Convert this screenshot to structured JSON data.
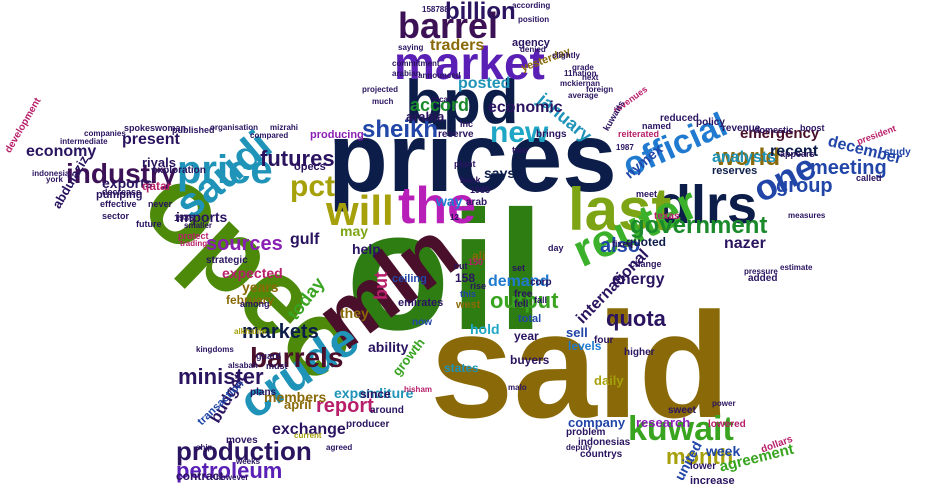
{
  "words": [
    {
      "text": "oil",
      "color": "#2e7d12"
    },
    {
      "text": "said",
      "color": "#8a6a08"
    },
    {
      "text": "prices",
      "color": "#0d1d4a"
    },
    {
      "text": "opec",
      "color": "#4d8a0a"
    },
    {
      "text": "mln",
      "color": "#4a0f2a"
    },
    {
      "text": "bpd",
      "color": "#0d1d4a"
    },
    {
      "text": "market",
      "color": "#5a1fb4"
    },
    {
      "text": "the",
      "color": "#b81fb8"
    },
    {
      "text": "dlrs",
      "color": "#0d1d4a"
    },
    {
      "text": "last",
      "color": "#7da414"
    },
    {
      "text": "reuter",
      "color": "#3bb02a"
    },
    {
      "text": "crude",
      "color": "#1f93b8"
    },
    {
      "text": "barrel",
      "color": "#3d1155"
    },
    {
      "text": "official",
      "color": "#1f7ad0"
    },
    {
      "text": "one",
      "color": "#2146a8"
    },
    {
      "text": "will",
      "color": "#a6a00a"
    },
    {
      "text": "saudi",
      "color": "#1f93b8"
    },
    {
      "text": "price",
      "color": "#1f93b8"
    },
    {
      "text": "new",
      "color": "#1fa6c4"
    },
    {
      "text": "kuwait",
      "color": "#38a41f"
    },
    {
      "text": "production",
      "color": "#2a1460"
    },
    {
      "text": "barrels",
      "color": "#4a0f2a"
    },
    {
      "text": "government",
      "color": "#1a8a2a"
    },
    {
      "text": "pct",
      "color": "#a6a00a"
    },
    {
      "text": "industry",
      "color": "#3d1155"
    },
    {
      "text": "sheikh",
      "color": "#2146a8"
    },
    {
      "text": "billion",
      "color": "#2a1460"
    },
    {
      "text": "futures",
      "color": "#2a1460"
    },
    {
      "text": "minister",
      "color": "#2a1460"
    },
    {
      "text": "petroleum",
      "color": "#5a1fb4"
    },
    {
      "text": "world",
      "color": "#8a6a08"
    },
    {
      "text": "meeting",
      "color": "#2146a8"
    },
    {
      "text": "month",
      "color": "#a6a00a"
    },
    {
      "text": "quota",
      "color": "#2a1460"
    },
    {
      "text": "output",
      "color": "#38a41f"
    },
    {
      "text": "sources",
      "color": "#8a1fb4"
    },
    {
      "text": "markets",
      "color": "#0d1d4a"
    },
    {
      "text": "report",
      "color": "#b81f6a"
    },
    {
      "text": "also",
      "color": "#2146a8"
    },
    {
      "text": "group",
      "color": "#2146a8"
    },
    {
      "text": "analysts",
      "color": "#1f93b8"
    },
    {
      "text": "accord",
      "color": "#1a8a2a"
    },
    {
      "text": "january",
      "color": "#1f93b8"
    },
    {
      "text": "economic",
      "color": "#2a1460"
    },
    {
      "text": "present",
      "color": "#2a1460"
    },
    {
      "text": "economy",
      "color": "#2a1460"
    },
    {
      "text": "emergency",
      "color": "#4a0f2a"
    },
    {
      "text": "december",
      "color": "#2146a8"
    },
    {
      "text": "recent",
      "color": "#0d1d4a"
    },
    {
      "text": "traders",
      "color": "#8a6a08"
    },
    {
      "text": "posted",
      "color": "#1f93b8"
    },
    {
      "text": "demand",
      "color": "#1f7ad0"
    },
    {
      "text": "today",
      "color": "#38a41f"
    },
    {
      "text": "members",
      "color": "#8a6a08"
    },
    {
      "text": "expenditure",
      "color": "#1f93b8"
    },
    {
      "text": "exchange",
      "color": "#2a1460"
    },
    {
      "text": "budget",
      "color": "#2a1460"
    },
    {
      "text": "expected",
      "color": "#b81f6a"
    },
    {
      "text": "international",
      "color": "#2a1460"
    },
    {
      "text": "energy",
      "color": "#2a1460"
    },
    {
      "text": "nazer",
      "color": "#2a1460"
    },
    {
      "text": "agreement",
      "color": "#38a41f"
    },
    {
      "text": "week",
      "color": "#2146a8"
    },
    {
      "text": "united",
      "color": "#2146a8"
    },
    {
      "text": "company",
      "color": "#2146a8"
    },
    {
      "text": "research",
      "color": "#8a1fb4"
    },
    {
      "text": "gulf",
      "color": "#2a1460"
    },
    {
      "text": "years",
      "color": "#8a6a08"
    },
    {
      "text": "exports",
      "color": "#2a1460"
    },
    {
      "text": "imports",
      "color": "#2a1460"
    },
    {
      "text": "help",
      "color": "#2a1460"
    },
    {
      "text": "may",
      "color": "#7da414"
    },
    {
      "text": "but",
      "color": "#b81f6a"
    },
    {
      "text": "they",
      "color": "#8a6a08"
    },
    {
      "text": "ability",
      "color": "#2a1460"
    },
    {
      "text": "growth",
      "color": "#38a41f"
    },
    {
      "text": "nymex",
      "color": "#2146a8"
    },
    {
      "text": "says",
      "color": "#0d1d4a"
    },
    {
      "text": "way",
      "color": "#1f7ad0"
    },
    {
      "text": "arabia",
      "color": "#2a1460"
    },
    {
      "text": "riyals",
      "color": "#2a1460"
    },
    {
      "text": "abdulaziz",
      "color": "#2a1460"
    },
    {
      "text": "sell",
      "color": "#2146a8"
    },
    {
      "text": "hold",
      "color": "#1fa6c4"
    },
    {
      "text": "year",
      "color": "#2a1460"
    },
    {
      "text": "158",
      "color": "#2a1460"
    },
    {
      "text": "ali",
      "color": "#8a6a08"
    },
    {
      "text": "quoted",
      "color": "#0d1d4a"
    },
    {
      "text": "daily",
      "color": "#a6a00a"
    },
    {
      "text": "april",
      "color": "#8a6a08"
    },
    {
      "text": "contract",
      "color": "#2a1460"
    },
    {
      "text": "february",
      "color": "#8a6a08"
    },
    {
      "text": "opecs",
      "color": "#2a1460"
    },
    {
      "text": "reserves",
      "color": "#0d1d4a"
    },
    {
      "text": "increase",
      "color": "#2a1460"
    },
    {
      "text": "states",
      "color": "#1f93b8"
    },
    {
      "text": "buyers",
      "color": "#2a1460"
    },
    {
      "text": "since",
      "color": "#2a1460"
    },
    {
      "text": "levels",
      "color": "#1f7ad0"
    },
    {
      "text": "qatar",
      "color": "#b81f6a"
    },
    {
      "text": "exploration",
      "color": "#2a1460"
    },
    {
      "text": "pumping",
      "color": "#2a1460"
    },
    {
      "text": "strategic",
      "color": "#2a1460"
    },
    {
      "text": "transaction",
      "color": "#2146a8"
    },
    {
      "text": "producing",
      "color": "#8a1fb4"
    },
    {
      "text": "agency",
      "color": "#2a1460"
    },
    {
      "text": "yesterday",
      "color": "#8a6a08"
    },
    {
      "text": "emirates",
      "color": "#2a1460"
    },
    {
      "text": "total",
      "color": "#2146a8"
    },
    {
      "text": "west",
      "color": "#8a6a08"
    },
    {
      "text": "ceiling",
      "color": "#2146a8"
    },
    {
      "text": "fell",
      "color": "#2a1460"
    },
    {
      "text": "free",
      "color": "#2a1460"
    },
    {
      "text": "corp",
      "color": "#2a1460"
    },
    {
      "text": "now",
      "color": "#2146a8"
    },
    {
      "text": "arab",
      "color": "#2a1460"
    },
    {
      "text": "study",
      "color": "#2146a8"
    },
    {
      "text": "added",
      "color": "#2a1460"
    },
    {
      "text": "higher",
      "color": "#2a1460"
    },
    {
      "text": "four",
      "color": "#2a1460"
    },
    {
      "text": "problem",
      "color": "#2a1460"
    },
    {
      "text": "texas",
      "color": "#b81f6a"
    },
    {
      "text": "sweet",
      "color": "#2a1460"
    },
    {
      "text": "lower",
      "color": "#2a1460"
    },
    {
      "text": "plans",
      "color": "#2a1460"
    },
    {
      "text": "moves",
      "color": "#2a1460"
    },
    {
      "text": "producer",
      "color": "#2a1460"
    },
    {
      "text": "around",
      "color": "#2a1460"
    },
    {
      "text": "countrys",
      "color": "#2a1460"
    },
    {
      "text": "indonesias",
      "color": "#2a1460"
    },
    {
      "text": "dollars",
      "color": "#b81f6a"
    },
    {
      "text": "lowered",
      "color": "#b81f6a"
    },
    {
      "text": "reserve",
      "color": "#2a1460"
    },
    {
      "text": "brings",
      "color": "#2a1460"
    },
    {
      "text": "policy",
      "color": "#2a1460"
    },
    {
      "text": "revenue",
      "color": "#2a1460"
    },
    {
      "text": "reduced",
      "color": "#2a1460"
    },
    {
      "text": "reiterated",
      "color": "#b81f6a"
    },
    {
      "text": "revenues",
      "color": "#b81f6a"
    },
    {
      "text": "kuwaits",
      "color": "#2a1460"
    },
    {
      "text": "domestic",
      "color": "#2a1460"
    },
    {
      "text": "appears",
      "color": "#2a1460"
    },
    {
      "text": "boost",
      "color": "#2a1460"
    },
    {
      "text": "called",
      "color": "#2a1460"
    },
    {
      "text": "named",
      "color": "#2a1460"
    },
    {
      "text": "effective",
      "color": "#2a1460"
    },
    {
      "text": "never",
      "color": "#2a1460"
    },
    {
      "text": "sector",
      "color": "#2a1460"
    },
    {
      "text": "future",
      "color": "#2a1460"
    },
    {
      "text": "protect",
      "color": "#b81f6a"
    },
    {
      "text": "among",
      "color": "#2a1460"
    },
    {
      "text": "guard",
      "color": "#2a1460"
    },
    {
      "text": "must",
      "color": "#2a1460"
    },
    {
      "text": "fixed",
      "color": "#2a1460"
    },
    {
      "text": "change",
      "color": "#2a1460"
    },
    {
      "text": "plant",
      "color": "#2a1460"
    },
    {
      "text": "cut",
      "color": "#2a1460"
    },
    {
      "text": "rise",
      "color": "#2a1460"
    },
    {
      "text": "this",
      "color": "#2146a8"
    },
    {
      "text": "set",
      "color": "#2a1460"
    },
    {
      "text": "fall",
      "color": "#2a1460"
    },
    {
      "text": "day",
      "color": "#2a1460"
    },
    {
      "text": "two",
      "color": "#2a1460"
    },
    {
      "text": "inc",
      "color": "#2a1460"
    },
    {
      "text": "back",
      "color": "#2a1460"
    },
    {
      "text": "meet",
      "color": "#2a1460"
    },
    {
      "text": "1985",
      "color": "#2a1460"
    },
    {
      "text": "1986",
      "color": "#2a1460"
    },
    {
      "text": "150",
      "color": "#b81f6a"
    },
    {
      "text": "spokeswoman",
      "color": "#2a1460"
    },
    {
      "text": "development",
      "color": "#b81f6a"
    },
    {
      "text": "decrease",
      "color": "#2a1460"
    },
    {
      "text": "published",
      "color": "#2a1460"
    },
    {
      "text": "commitment",
      "color": "#2a1460"
    },
    {
      "text": "compared",
      "color": "#2a1460"
    },
    {
      "text": "mizrahi",
      "color": "#2a1460"
    },
    {
      "text": "saying",
      "color": "#2a1460"
    },
    {
      "text": "arabian",
      "color": "#2a1460"
    },
    {
      "text": "denied",
      "color": "#2a1460"
    },
    {
      "text": "position",
      "color": "#2a1460"
    },
    {
      "text": "foreign",
      "color": "#2a1460"
    },
    {
      "text": "according",
      "color": "#2a1460"
    },
    {
      "text": "mckiernan",
      "color": "#2a1460"
    },
    {
      "text": "grade",
      "color": "#2a1460"
    },
    {
      "text": "next",
      "color": "#2a1460"
    },
    {
      "text": "president",
      "color": "#b81f6a"
    },
    {
      "text": "estimate",
      "color": "#2a1460"
    },
    {
      "text": "pressure",
      "color": "#2a1460"
    },
    {
      "text": "measures",
      "color": "#2a1460"
    },
    {
      "text": "power",
      "color": "#2a1460"
    },
    {
      "text": "hisham",
      "color": "#b81f6a"
    },
    {
      "text": "alsabah",
      "color": "#2a1460"
    },
    {
      "text": "alkhalifa",
      "color": "#a6a00a"
    },
    {
      "text": "kingdoms",
      "color": "#2a1460"
    },
    {
      "text": "indonesia",
      "color": "#2a1460"
    },
    {
      "text": "companies",
      "color": "#2a1460"
    },
    {
      "text": "organisation",
      "color": "#2a1460"
    },
    {
      "text": "announced",
      "color": "#2a1460"
    },
    {
      "text": "average",
      "color": "#2a1460"
    },
    {
      "text": "projected",
      "color": "#2a1460"
    },
    {
      "text": "local",
      "color": "#2a1460"
    },
    {
      "text": "much",
      "color": "#2a1460"
    },
    {
      "text": "ship",
      "color": "#2a1460"
    },
    {
      "text": "weeks",
      "color": "#2a1460"
    },
    {
      "text": "agreed",
      "color": "#2a1460"
    },
    {
      "text": "current",
      "color": "#a6a00a"
    },
    {
      "text": "however",
      "color": "#2a1460"
    },
    {
      "text": "deputy",
      "color": "#2a1460"
    },
    {
      "text": "slightly",
      "color": "#2a1460"
    },
    {
      "text": "malo",
      "color": "#2a1460"
    },
    {
      "text": "158788",
      "color": "#2a1460"
    },
    {
      "text": "1987",
      "color": "#2a1460"
    },
    {
      "text": "11nation",
      "color": "#2a1460"
    },
    {
      "text": "smaller",
      "color": "#2a1460"
    },
    {
      "text": "trading",
      "color": "#b81f6a"
    },
    {
      "text": "york",
      "color": "#2a1460"
    },
    {
      "text": "intermediate",
      "color": "#2a1460"
    },
    {
      "text": "12",
      "color": "#2a1460"
    }
  ]
}
